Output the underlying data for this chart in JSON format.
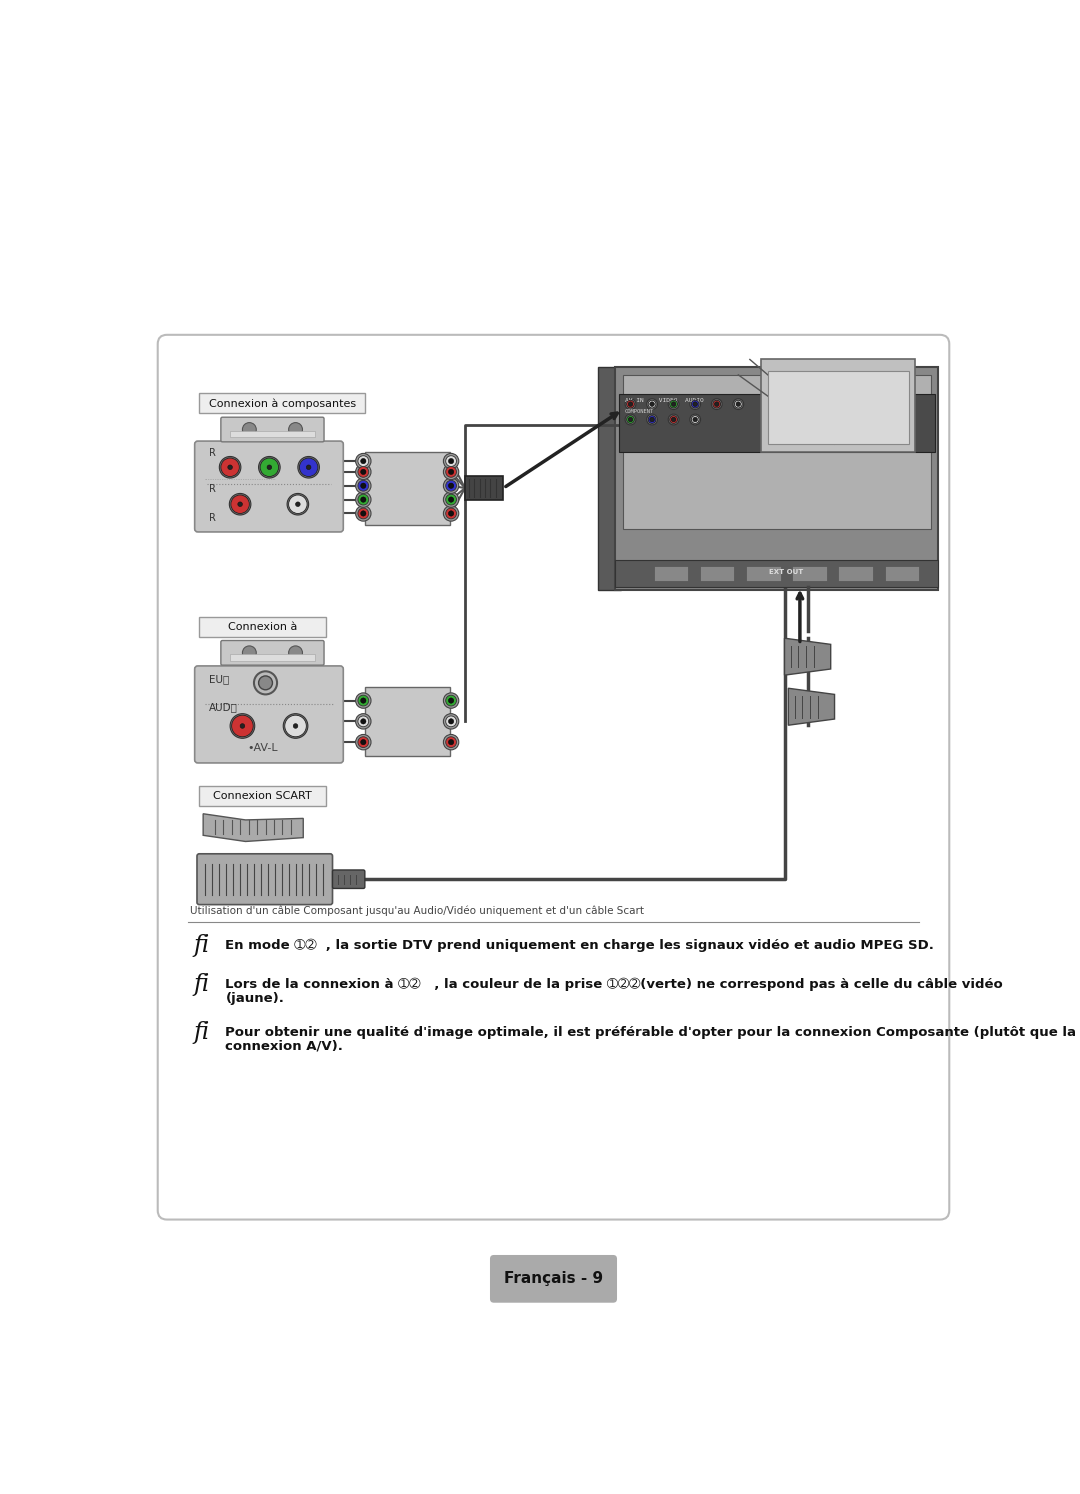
{
  "page_bg": "#ffffff",
  "box_edge_color": "#bbbbbb",
  "box_face_color": "#ffffff",
  "page_number_text": "Français - 9",
  "page_number_bg": "#aaaaaa",
  "section1_label": "Connexion à composantes",
  "section2_label": "Connexion à",
  "section3_label": "Connexion SCART",
  "bullet_char": "fi",
  "note_line": "Utilisation d'un câble Composant jusqu'au Audio/Vidéo uniquement et d'un câble Scart",
  "bullet1": "En mode ➀➁  , la sortie DTV prend uniquement en charge les signaux vidéo et audio MPEG SD.",
  "bullet2": "Lors de la connexion à ➀➁   , la couleur de la prise ➀➁➁(verte) ne correspond pas à celle du câble vidéo\n(jaune).",
  "bullet3": "Pour obtenir une qualité d'image optimale, il est préférable d'opter pour la connexion Composante (plutôt que la\nconnexion A/V).",
  "text_color": "#111111",
  "tv_outer": "#888888",
  "tv_inner_screen": "#c8c8c8",
  "tv_panel_color": "#666666",
  "tv_bottom_bar": "#555555",
  "device_body": "#cccccc",
  "device_edge": "#888888",
  "connector_body": "#555555",
  "connector_edge": "#333333",
  "cable_color": "#444444",
  "rca_red": "#cc3333",
  "rca_green": "#33aa33",
  "rca_blue": "#3333cc",
  "rca_white": "#dddddd",
  "rca_yellow": "#dddd00",
  "label_bg": "#eeeeee",
  "label_edge": "#999999",
  "scart_body": "#777777",
  "scart_edge": "#444444"
}
